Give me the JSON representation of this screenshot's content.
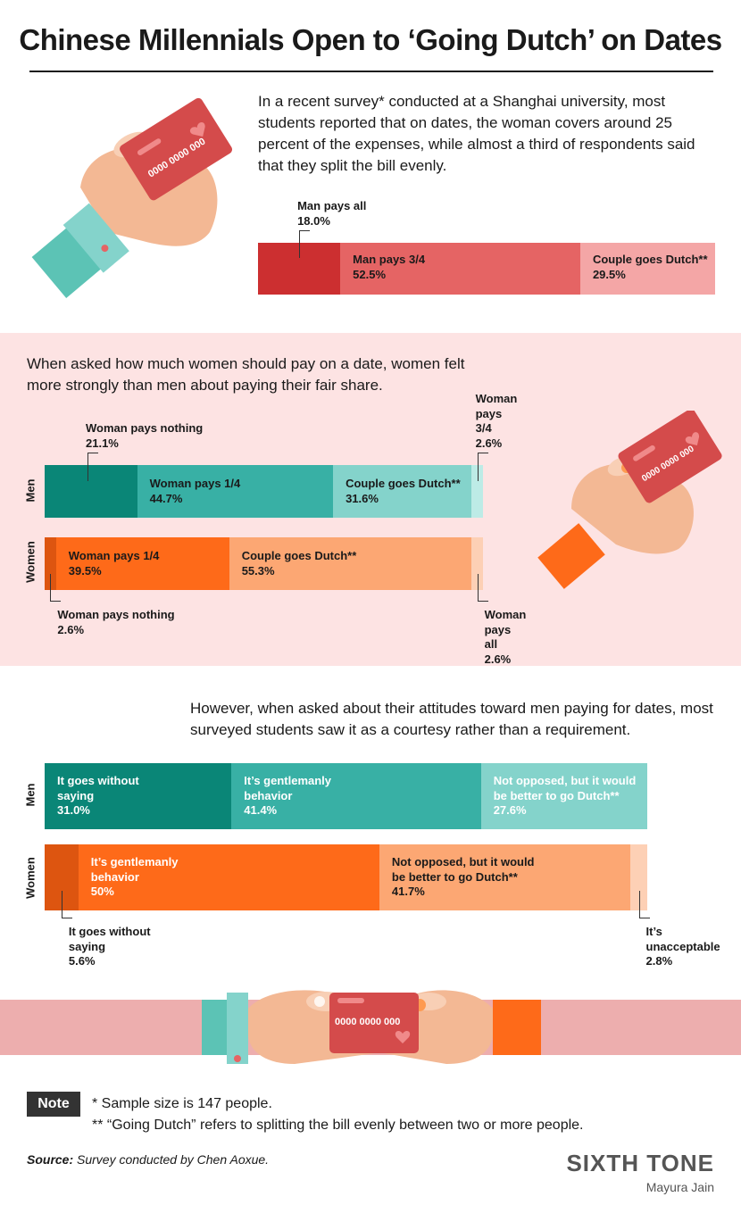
{
  "title": "Chinese Millennials Open to ‘Going Dutch’ on Dates",
  "intro1": "In a recent survey* conducted at a Shanghai university, most students reported that on dates, the woman covers around 25 percent of the expenses, while almost a third of respondents said that they split the bill evenly.",
  "intro2": "When asked how much women should pay on a date, women felt more strongly than men about paying their fair share.",
  "intro3": "However, when asked about their attitudes toward men paying for dates, most surveyed students saw it as a courtesy rather than a requirement.",
  "card_number": "0000 0000 000",
  "note_label": "Note",
  "note1": "* Sample size is 147 people.",
  "note2": "** “Going Dutch” refers to splitting the bill evenly between two or more people.",
  "source_label": "Source:",
  "source_text": "Survey conducted by Chen Aoxue.",
  "brand": "SIXTH TONE",
  "author": "Mayura Jain",
  "colors": {
    "red_dark": "#cc2f30",
    "red_mid": "#e56464",
    "red_light": "#f4a6a6",
    "teal_dark": "#0a8677",
    "teal_mid": "#38b0a5",
    "teal_light": "#84d3cb",
    "teal_pale": "#bdebe6",
    "orange_dark": "#dd5510",
    "orange_mid": "#fe6a19",
    "orange_light": "#fca773",
    "orange_pale": "#fdd0b5",
    "pink_band": "#fde3e3"
  },
  "chart_data": [
    {
      "type": "bar",
      "stacked": true,
      "orientation": "horizontal",
      "series": [
        {
          "name": "Man pays all",
          "values": [
            18.0
          ],
          "label": "18.0%"
        },
        {
          "name": "Man pays 3/4",
          "values": [
            52.5
          ],
          "label": "52.5%"
        },
        {
          "name": "Couple goes Dutch**",
          "values": [
            29.5
          ],
          "label": "29.5%"
        }
      ]
    },
    {
      "type": "bar",
      "stacked": true,
      "orientation": "horizontal",
      "categories": [
        "Men",
        "Women"
      ],
      "series": [
        {
          "name": "Woman pays nothing",
          "values": [
            21.1,
            2.6
          ]
        },
        {
          "name": "Woman pays 1/4",
          "values": [
            44.7,
            39.5
          ]
        },
        {
          "name": "Couple goes Dutch**",
          "values": [
            31.6,
            55.3
          ]
        },
        {
          "name": "Woman pays 3/4",
          "values": [
            2.6,
            null
          ]
        },
        {
          "name": "Woman pays all",
          "values": [
            null,
            2.6
          ]
        }
      ]
    },
    {
      "type": "bar",
      "stacked": true,
      "orientation": "horizontal",
      "categories": [
        "Men",
        "Women"
      ],
      "series": [
        {
          "name": "It goes without saying",
          "values": [
            31.0,
            5.6
          ]
        },
        {
          "name": "It’s gentlemanly behavior",
          "values": [
            41.4,
            50
          ]
        },
        {
          "name": "Not opposed, but it would be better to go Dutch**",
          "values": [
            27.6,
            41.7
          ]
        },
        {
          "name": "It’s unacceptable",
          "values": [
            null,
            2.8
          ]
        }
      ]
    }
  ],
  "chart1": {
    "segments": [
      {
        "label": "Man pays all",
        "pct": "18.0%",
        "value": 18.0,
        "color": "#cc2f30",
        "outside": true
      },
      {
        "label": "Man pays 3/4",
        "pct": "52.5%",
        "value": 52.5,
        "color": "#e56464",
        "text_light": false
      },
      {
        "label": "Couple goes Dutch**",
        "pct": "29.5%",
        "value": 29.5,
        "color": "#f4a6a6",
        "text_light": false
      }
    ]
  },
  "chart2": {
    "row_men": "Men",
    "row_women": "Women",
    "men": [
      {
        "label": "Woman pays nothing",
        "pct": "21.1%",
        "value": 21.1,
        "color": "#0a8677",
        "outside": "top"
      },
      {
        "label": "Woman pays 1/4",
        "pct": "44.7%",
        "value": 44.7,
        "color": "#38b0a5"
      },
      {
        "label": "Couple goes Dutch**",
        "pct": "31.6%",
        "value": 31.6,
        "color": "#84d3cb"
      },
      {
        "label": "Woman pays 3/4",
        "pct": "2.6%",
        "value": 2.6,
        "color": "#bdebe6",
        "outside": "top"
      }
    ],
    "women": [
      {
        "label": "Woman pays nothing",
        "pct": "2.6%",
        "value": 2.6,
        "color": "#dd5510",
        "outside": "bottom"
      },
      {
        "label": "Woman pays 1/4",
        "pct": "39.5%",
        "value": 39.5,
        "color": "#fe6a19"
      },
      {
        "label": "Couple goes Dutch**",
        "pct": "55.3%",
        "value": 55.3,
        "color": "#fca773"
      },
      {
        "label": "Woman pays all",
        "pct": "2.6%",
        "value": 2.6,
        "color": "#fdd0b5",
        "outside": "bottom"
      }
    ]
  },
  "chart3": {
    "row_men": "Men",
    "row_women": "Women",
    "men": [
      {
        "label": "It goes without\nsaying",
        "pct": "31.0%",
        "value": 31.0,
        "color": "#0a8677",
        "light": true
      },
      {
        "label": "It’s gentlemanly\nbehavior",
        "pct": "41.4%",
        "value": 41.4,
        "color": "#38b0a5",
        "light": true
      },
      {
        "label": "Not opposed, but it would\nbe better to go Dutch**",
        "pct": "27.6%",
        "value": 27.6,
        "color": "#84d3cb",
        "light": true
      }
    ],
    "women": [
      {
        "label": "It goes without\nsaying",
        "pct": "5.6%",
        "value": 5.6,
        "color": "#dd5510",
        "outside": "bottom"
      },
      {
        "label": "It’s gentlemanly\nbehavior",
        "pct": "50%",
        "value": 50,
        "color": "#fe6a19",
        "light": true
      },
      {
        "label": "Not opposed, but it would\nbe better to go Dutch**",
        "pct": "41.7%",
        "value": 41.7,
        "color": "#fca773"
      },
      {
        "label": "It’s\nunacceptable",
        "pct": "2.8%",
        "value": 2.8,
        "color": "#fdd0b5",
        "outside": "bottom"
      }
    ]
  }
}
